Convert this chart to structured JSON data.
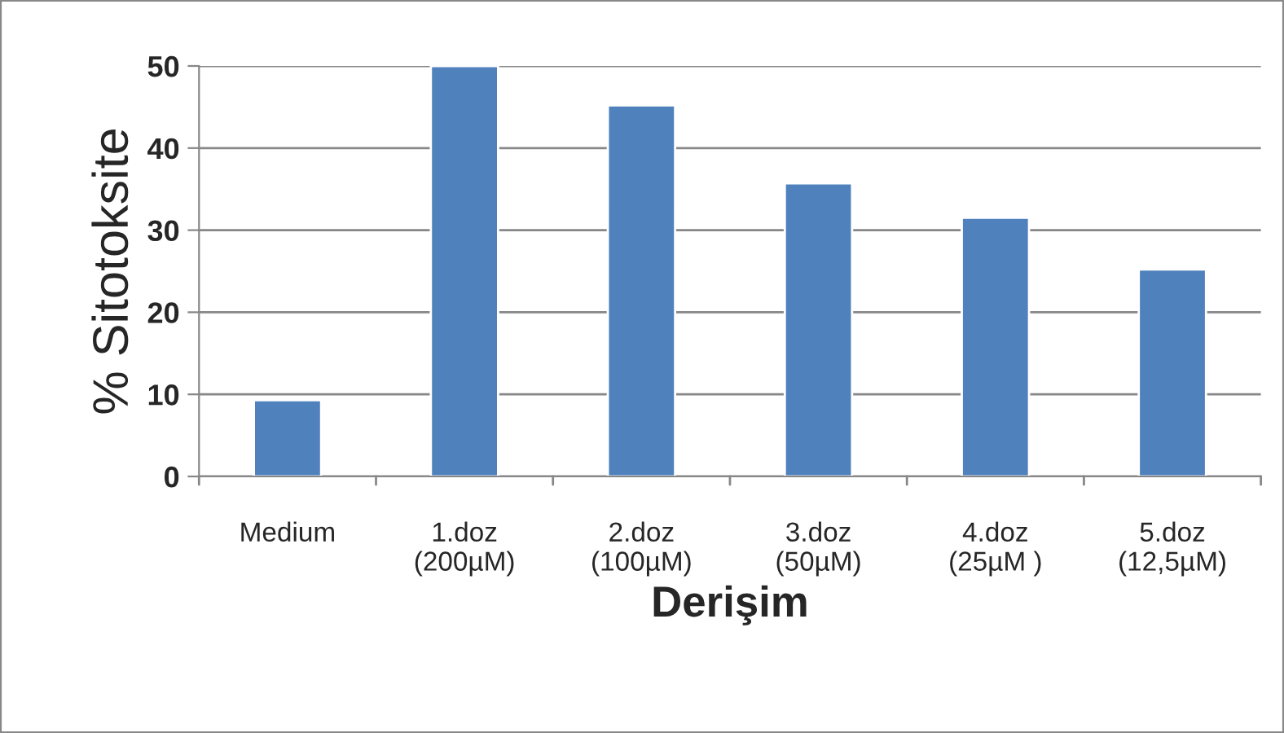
{
  "chart_data": {
    "type": "bar",
    "xlabel": "Derişim",
    "ylabel": "% Sitotoksite",
    "categories": [
      "Medium",
      "1.doz\n(200µM)",
      "2.doz\n(100µM)",
      "3.doz\n(50µM)",
      "4.doz\n(25µM )",
      "5.doz\n(12,5µM)"
    ],
    "values": [
      9.3,
      50,
      45.2,
      35.7,
      31.5,
      25.2
    ],
    "color": "#4f81bd",
    "ylim": [
      0,
      50
    ],
    "yticks": [
      0,
      10,
      20,
      30,
      40,
      50
    ],
    "grid": "y"
  }
}
